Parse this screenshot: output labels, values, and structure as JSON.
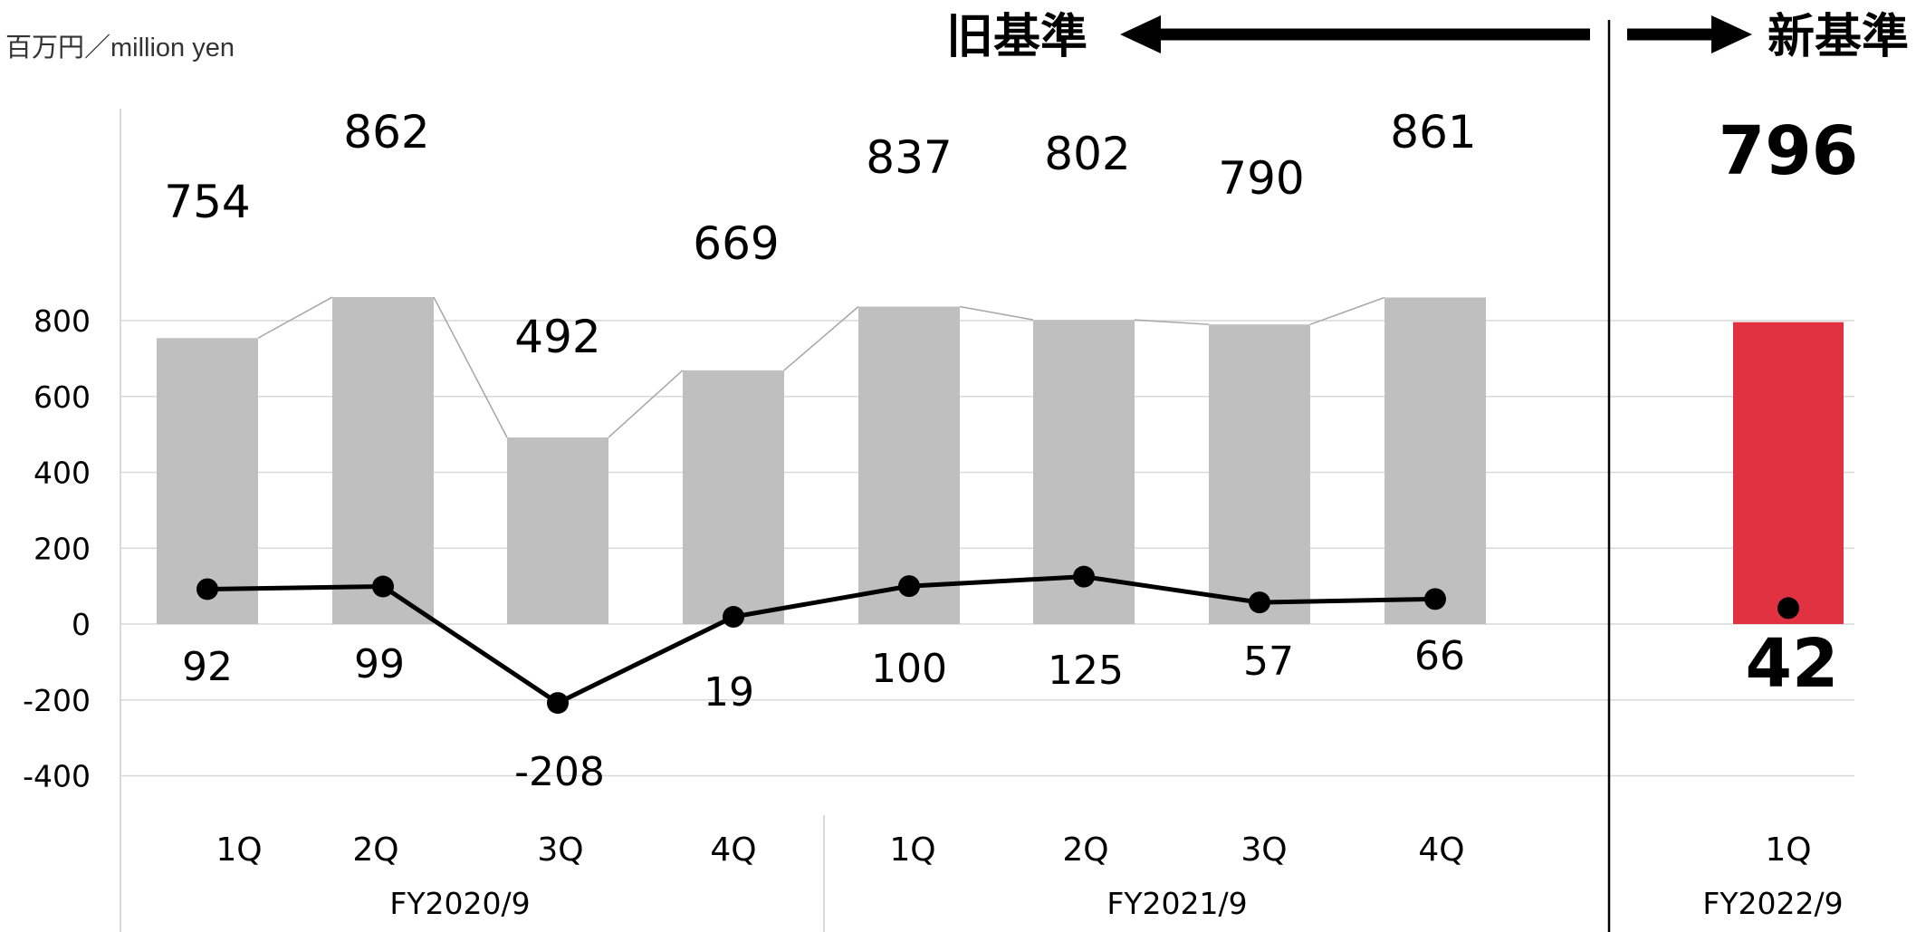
{
  "unit_label": "百万円／million yen",
  "basis_old_label": "旧基準",
  "basis_new_label": "新基準",
  "colors": {
    "bar_old": "#bfbfbf",
    "bar_new": "#e03241",
    "line": "#000000",
    "grid": "#d9d9d9"
  },
  "chart_data": {
    "type": "bar",
    "categories": [
      "1Q",
      "2Q",
      "3Q",
      "4Q",
      "1Q",
      "2Q",
      "3Q",
      "4Q",
      "1Q"
    ],
    "groups": [
      {
        "label": "FY2020/9",
        "span": 4
      },
      {
        "label": "FY2021/9",
        "span": 4
      },
      {
        "label": "FY2022/9",
        "span": 1
      }
    ],
    "series": [
      {
        "type": "bar",
        "values": [
          754,
          862,
          492,
          669,
          837,
          802,
          790,
          861,
          796
        ]
      },
      {
        "type": "line",
        "values": [
          92,
          99,
          -208,
          19,
          100,
          125,
          57,
          66,
          42
        ]
      }
    ],
    "bar_value_labels": [
      "754",
      "862",
      "492",
      "669",
      "837",
      "802",
      "790",
      "861",
      "796"
    ],
    "line_value_labels": [
      "92",
      "99",
      "-208",
      "19",
      "100",
      "125",
      "57",
      "66",
      "42"
    ],
    "yticks": [
      "800",
      "600",
      "400",
      "200",
      "0",
      "-200",
      "-400"
    ],
    "ylim": [
      -400,
      900
    ],
    "grid": true,
    "line_markers": true
  }
}
